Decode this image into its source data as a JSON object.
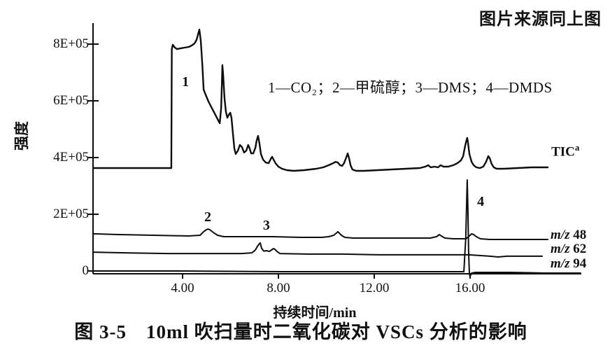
{
  "page": {
    "source_note": "图片来源同上图",
    "caption": "图 3-5　10ml 吹扫量时二氧化碳对 VSCs 分析的影响"
  },
  "chart_data": {
    "type": "line",
    "title": "",
    "xlabel": "持续时间/min",
    "ylabel": "强度",
    "legend_note": "1—CO₂；2—甲硫醇；3—DMS；4—DMDS",
    "grid": false,
    "line_color": "#0d0d0d",
    "xlim": [
      0.26,
      20.6
    ],
    "ylim": [
      -20000,
      880000
    ],
    "x_axis": {
      "ticks": [
        {
          "value": 4,
          "label": "4.00"
        },
        {
          "value": 8,
          "label": "8.00"
        },
        {
          "value": 12,
          "label": "12.00"
        },
        {
          "value": 16,
          "label": "16.00"
        }
      ]
    },
    "y_axis": {
      "ticks": [
        {
          "value": 800000,
          "label": "8E+05"
        },
        {
          "value": 600000,
          "label": "6E+05"
        },
        {
          "value": 400000,
          "label": "4E+05"
        },
        {
          "value": 200000,
          "label": "2E+05"
        },
        {
          "value": 0,
          "label": "0"
        }
      ]
    },
    "peaks": [
      {
        "label": "1",
        "compound": "CO₂",
        "t": 4.12,
        "i": 666500
      },
      {
        "label": "2",
        "compound": "甲硫醇",
        "t": 5.05,
        "i": 190000
      },
      {
        "label": "3",
        "compound": "DMS",
        "t": 7.5,
        "i": 160500
      },
      {
        "label": "4",
        "compound": "DMDS",
        "t": 16.44,
        "i": 244500
      }
    ],
    "series": [
      {
        "name": "TIC",
        "label": {
          "text": "TIC",
          "sup": "a"
        },
        "label_anchor": {
          "t": 19.36,
          "i": 434500
        },
        "stroke_width": 2.4,
        "points": [
          [
            0.26,
            363000
          ],
          [
            3.47,
            363000
          ],
          [
            3.53,
            363000
          ],
          [
            3.55,
            782500
          ],
          [
            3.59,
            797500
          ],
          [
            3.68,
            787500
          ],
          [
            3.77,
            782500
          ],
          [
            3.91,
            785000
          ],
          [
            4.09,
            787500
          ],
          [
            4.26,
            790000
          ],
          [
            4.38,
            795000
          ],
          [
            4.5,
            802500
          ],
          [
            4.58,
            814500
          ],
          [
            4.64,
            832000
          ],
          [
            4.7,
            851500
          ],
          [
            4.76,
            812000
          ],
          [
            4.82,
            733000
          ],
          [
            4.88,
            639500
          ],
          [
            4.96,
            622000
          ],
          [
            5.08,
            597500
          ],
          [
            5.26,
            568000
          ],
          [
            5.43,
            540500
          ],
          [
            5.55,
            521000
          ],
          [
            5.61,
            573000
          ],
          [
            5.64,
            659000
          ],
          [
            5.66,
            726000
          ],
          [
            5.69,
            696000
          ],
          [
            5.75,
            610000
          ],
          [
            5.81,
            560500
          ],
          [
            5.87,
            540500
          ],
          [
            5.93,
            550500
          ],
          [
            5.99,
            558000
          ],
          [
            6.04,
            540500
          ],
          [
            6.1,
            486500
          ],
          [
            6.16,
            432000
          ],
          [
            6.22,
            412500
          ],
          [
            6.31,
            424500
          ],
          [
            6.39,
            444500
          ],
          [
            6.48,
            437000
          ],
          [
            6.57,
            417500
          ],
          [
            6.66,
            424500
          ],
          [
            6.74,
            444500
          ],
          [
            6.8,
            432000
          ],
          [
            6.86,
            414500
          ],
          [
            6.95,
            414500
          ],
          [
            7.04,
            434500
          ],
          [
            7.09,
            459000
          ],
          [
            7.15,
            476500
          ],
          [
            7.21,
            449500
          ],
          [
            7.27,
            412500
          ],
          [
            7.36,
            392500
          ],
          [
            7.47,
            382500
          ],
          [
            7.59,
            380000
          ],
          [
            7.68,
            395000
          ],
          [
            7.74,
            402500
          ],
          [
            7.8,
            392500
          ],
          [
            7.88,
            380000
          ],
          [
            8.0,
            368000
          ],
          [
            8.15,
            360500
          ],
          [
            8.35,
            355500
          ],
          [
            8.64,
            353000
          ],
          [
            9.08,
            355500
          ],
          [
            9.58,
            360500
          ],
          [
            9.87,
            365500
          ],
          [
            10.1,
            373000
          ],
          [
            10.28,
            380000
          ],
          [
            10.39,
            385000
          ],
          [
            10.48,
            382500
          ],
          [
            10.57,
            373000
          ],
          [
            10.66,
            370500
          ],
          [
            10.74,
            380000
          ],
          [
            10.83,
            400000
          ],
          [
            10.89,
            414500
          ],
          [
            10.95,
            397500
          ],
          [
            11.01,
            373000
          ],
          [
            11.09,
            358000
          ],
          [
            11.24,
            353000
          ],
          [
            11.56,
            353000
          ],
          [
            12.15,
            355500
          ],
          [
            12.73,
            358000
          ],
          [
            13.31,
            360500
          ],
          [
            13.9,
            363000
          ],
          [
            14.13,
            368000
          ],
          [
            14.25,
            373000
          ],
          [
            14.36,
            365500
          ],
          [
            14.51,
            368000
          ],
          [
            14.66,
            365500
          ],
          [
            14.77,
            373000
          ],
          [
            14.89,
            368000
          ],
          [
            15.09,
            368000
          ],
          [
            15.3,
            373000
          ],
          [
            15.47,
            380000
          ],
          [
            15.62,
            390000
          ],
          [
            15.71,
            405000
          ],
          [
            15.79,
            439500
          ],
          [
            15.85,
            461500
          ],
          [
            15.88,
            469000
          ],
          [
            15.91,
            454500
          ],
          [
            15.97,
            412500
          ],
          [
            16.06,
            385000
          ],
          [
            16.15,
            373000
          ],
          [
            16.26,
            365500
          ],
          [
            16.41,
            363000
          ],
          [
            16.55,
            368000
          ],
          [
            16.67,
            385000
          ],
          [
            16.76,
            405000
          ],
          [
            16.82,
            397500
          ],
          [
            16.9,
            377500
          ],
          [
            16.99,
            365500
          ],
          [
            17.11,
            360500
          ],
          [
            17.4,
            360500
          ],
          [
            17.98,
            363000
          ],
          [
            18.57,
            365500
          ],
          [
            19.24,
            365500
          ]
        ]
      },
      {
        "name": "m/z 48",
        "label": {
          "prefix": "m/z",
          "value": " 48"
        },
        "label_anchor": {
          "t": 19.33,
          "i": 126000
        },
        "stroke_width": 2.0,
        "points": [
          [
            0.26,
            131000
          ],
          [
            1.34,
            128500
          ],
          [
            2.8,
            126000
          ],
          [
            4.26,
            123500
          ],
          [
            4.73,
            126000
          ],
          [
            4.88,
            138500
          ],
          [
            4.99,
            145500
          ],
          [
            5.05,
            148000
          ],
          [
            5.14,
            145500
          ],
          [
            5.28,
            136000
          ],
          [
            5.46,
            126000
          ],
          [
            5.72,
            121000
          ],
          [
            6.6,
            121000
          ],
          [
            7.77,
            121000
          ],
          [
            8.93,
            118500
          ],
          [
            9.81,
            118500
          ],
          [
            10.1,
            121000
          ],
          [
            10.31,
            126000
          ],
          [
            10.42,
            133500
          ],
          [
            10.48,
            138500
          ],
          [
            10.54,
            133500
          ],
          [
            10.63,
            126000
          ],
          [
            10.77,
            118500
          ],
          [
            11.12,
            116000
          ],
          [
            12.15,
            116000
          ],
          [
            13.31,
            116000
          ],
          [
            14.34,
            116000
          ],
          [
            14.6,
            121000
          ],
          [
            14.72,
            128500
          ],
          [
            14.8,
            123500
          ],
          [
            14.95,
            116000
          ],
          [
            15.3,
            113500
          ],
          [
            15.65,
            113500
          ],
          [
            15.82,
            113500
          ],
          [
            15.91,
            118500
          ],
          [
            16.0,
            126000
          ],
          [
            16.06,
            131000
          ],
          [
            16.15,
            128500
          ],
          [
            16.26,
            121000
          ],
          [
            16.43,
            113500
          ],
          [
            16.82,
            111000
          ],
          [
            17.69,
            111000
          ],
          [
            18.57,
            111000
          ],
          [
            19.24,
            111000
          ]
        ]
      },
      {
        "name": "m/z 62",
        "label": {
          "prefix": "m/z",
          "value": " 62"
        },
        "label_anchor": {
          "t": 19.33,
          "i": 76500
        },
        "stroke_width": 2.0,
        "points": [
          [
            0.26,
            66500
          ],
          [
            1.64,
            64000
          ],
          [
            3.39,
            61500
          ],
          [
            5.14,
            61500
          ],
          [
            6.45,
            61500
          ],
          [
            6.89,
            64000
          ],
          [
            7.04,
            74000
          ],
          [
            7.12,
            86500
          ],
          [
            7.21,
            96500
          ],
          [
            7.24,
            99000
          ],
          [
            7.3,
            80000
          ],
          [
            7.39,
            70000
          ],
          [
            7.5,
            71500
          ],
          [
            7.62,
            69000
          ],
          [
            7.71,
            74000
          ],
          [
            7.8,
            79000
          ],
          [
            7.85,
            76500
          ],
          [
            7.94,
            69000
          ],
          [
            8.06,
            61500
          ],
          [
            9.23,
            59500
          ],
          [
            10.69,
            59500
          ],
          [
            12.15,
            57000
          ],
          [
            13.61,
            57000
          ],
          [
            15.06,
            57000
          ],
          [
            15.94,
            57000
          ],
          [
            16.38,
            54500
          ],
          [
            16.82,
            52000
          ],
          [
            17.17,
            49500
          ],
          [
            17.55,
            52000
          ],
          [
            18.28,
            52000
          ],
          [
            19.01,
            52000
          ]
        ]
      },
      {
        "name": "m/z 94",
        "label": {
          "prefix": "m/z",
          "value": " 94"
        },
        "label_anchor": {
          "t": 19.33,
          "i": 24500
        },
        "stroke_width": 2.0,
        "points": [
          [
            0.26,
            0
          ],
          [
            3.68,
            0
          ],
          [
            8.06,
            -2500
          ],
          [
            12.44,
            -2500
          ],
          [
            15.06,
            -2500
          ],
          [
            15.74,
            -2500
          ],
          [
            15.82,
            116000
          ],
          [
            15.88,
            321000
          ],
          [
            15.91,
            215000
          ],
          [
            15.94,
            66500
          ],
          [
            15.97,
            -10000
          ],
          [
            16.0,
            -19500
          ],
          [
            16.06,
            -7500
          ],
          [
            16.23,
            -5000
          ],
          [
            17.69,
            -5000
          ],
          [
            19.15,
            -7500
          ],
          [
            20.61,
            -7500
          ]
        ]
      }
    ]
  }
}
